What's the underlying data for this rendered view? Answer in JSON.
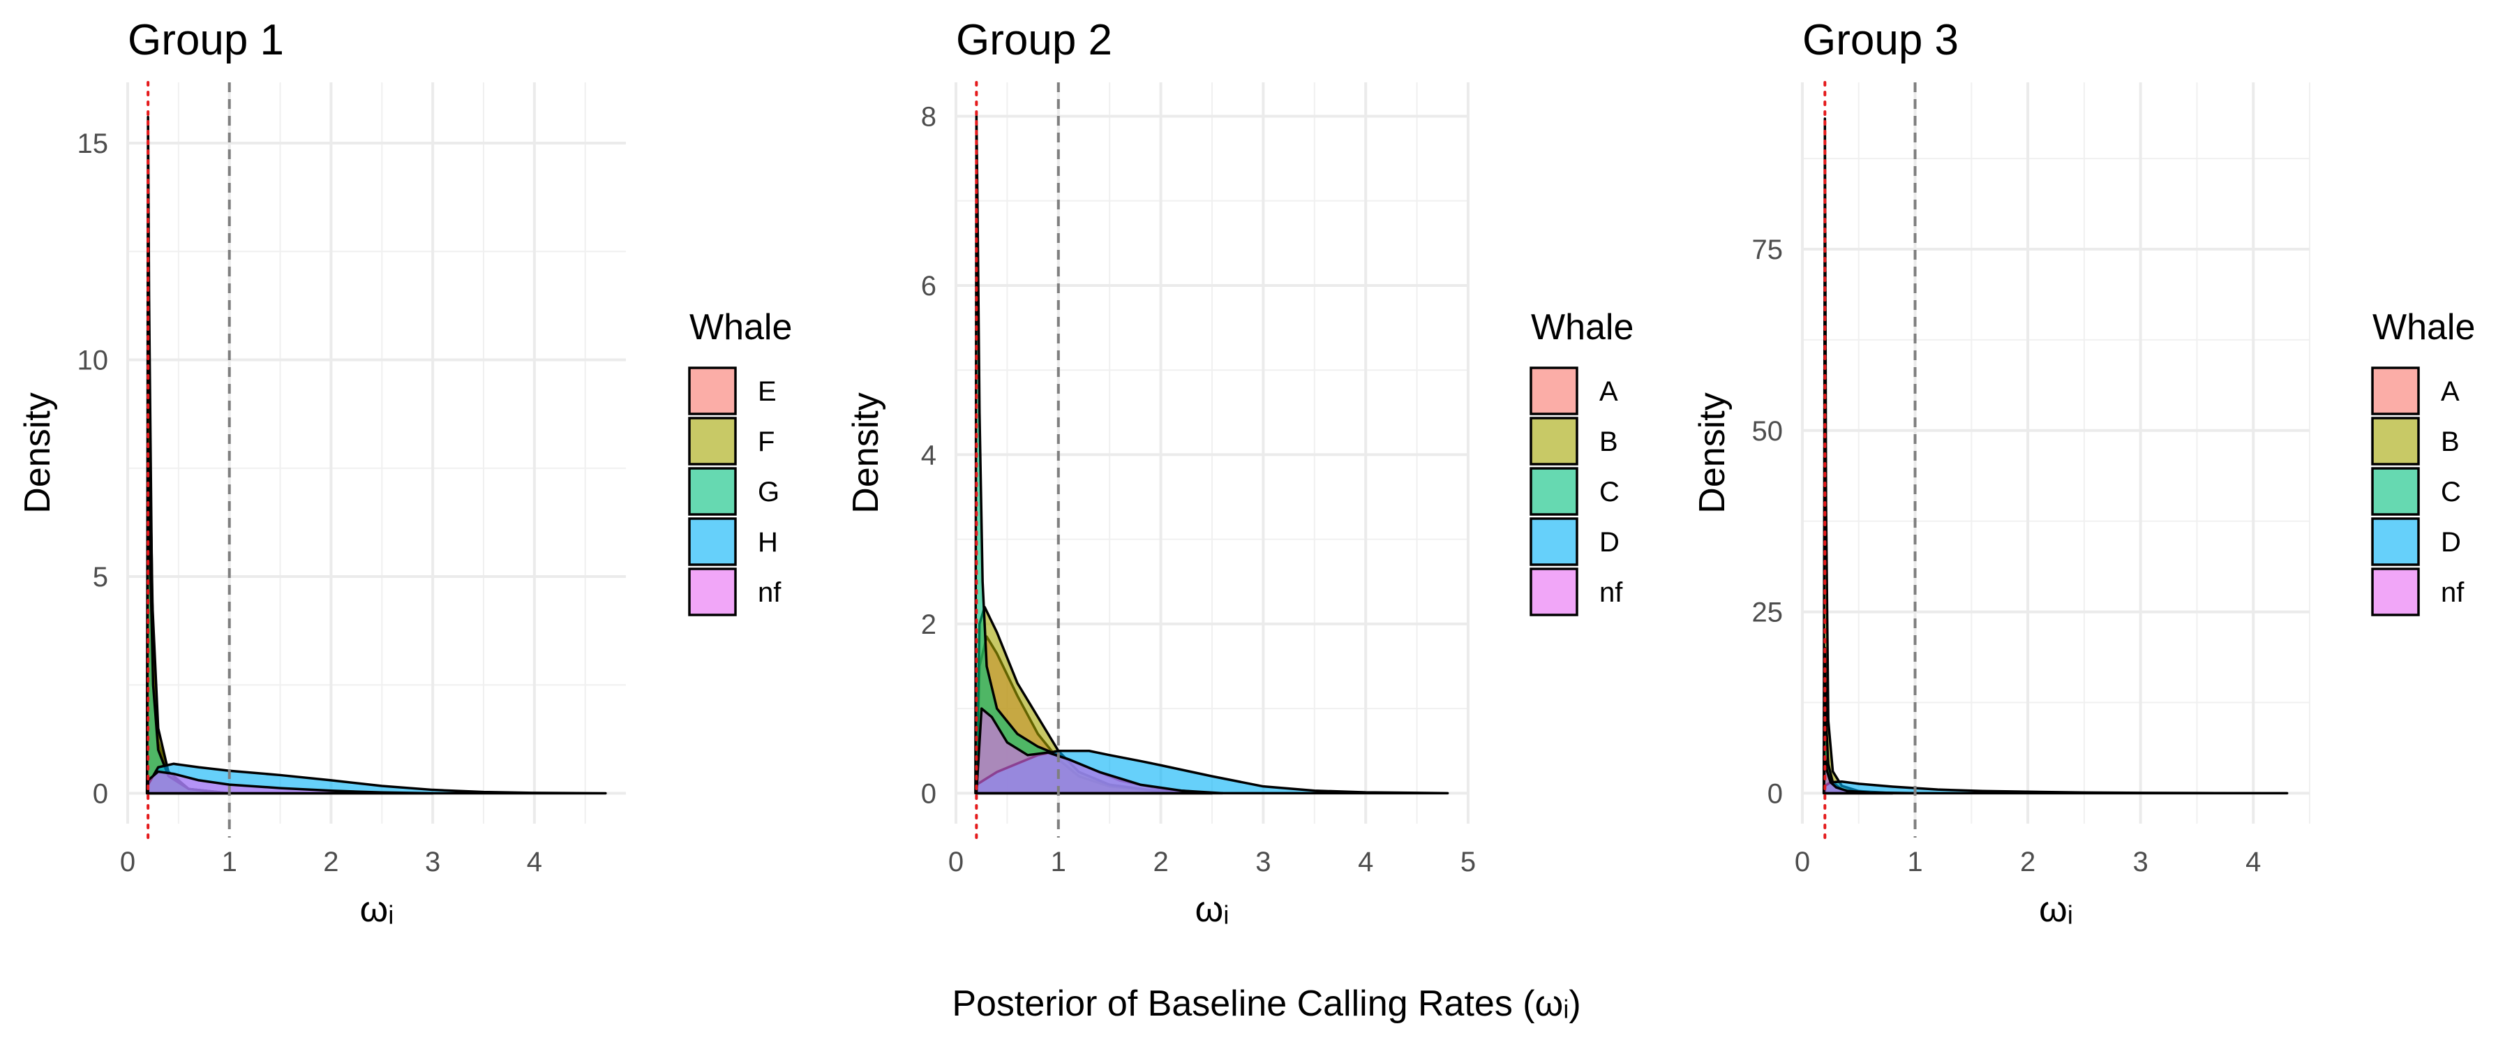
{
  "caption": "Posterior of Baseline Calling Rates (ωᵢ)",
  "chart_data": [
    {
      "type": "area",
      "title": "Group 1",
      "xlabel": "ωᵢ",
      "ylabel": "Density",
      "xlim": [
        0,
        4.9
      ],
      "ylim": [
        -0.7,
        16.4
      ],
      "x_ticks": [
        0,
        1,
        2,
        3,
        4
      ],
      "y_ticks": [
        0,
        5,
        10,
        15
      ],
      "reference_lines": [
        {
          "x": 0.2,
          "style": "dotted",
          "color": "#e41a1c"
        },
        {
          "x": 1.0,
          "style": "dashed",
          "color": "#7f7f7f"
        }
      ],
      "legend_title": "Whale",
      "legend_position": "right",
      "series": [
        {
          "name": "E",
          "color": "#F8766D",
          "x": [
            0.19,
            0.2,
            0.21,
            0.25,
            0.3,
            0.4,
            0.6,
            1.0
          ],
          "y": [
            0,
            11.2,
            9.0,
            3.5,
            1.2,
            0.4,
            0.1,
            0
          ]
        },
        {
          "name": "F",
          "color": "#A3A500",
          "x": [
            0.19,
            0.2,
            0.21,
            0.24,
            0.3,
            0.4,
            0.6,
            1.0
          ],
          "y": [
            0,
            15.6,
            11.5,
            4.5,
            1.5,
            0.5,
            0.1,
            0
          ]
        },
        {
          "name": "G",
          "color": "#00BF7D",
          "x": [
            0.19,
            0.2,
            0.21,
            0.25,
            0.3,
            0.4,
            0.6,
            1.0
          ],
          "y": [
            0,
            8.0,
            6.5,
            2.5,
            1.0,
            0.4,
            0.1,
            0
          ]
        },
        {
          "name": "H",
          "color": "#00B0F6",
          "x": [
            0.2,
            0.3,
            0.45,
            0.7,
            1.0,
            1.5,
            2.0,
            2.5,
            3.0,
            3.5,
            4.0,
            4.7
          ],
          "y": [
            0.2,
            0.6,
            0.68,
            0.6,
            0.52,
            0.42,
            0.3,
            0.17,
            0.08,
            0.03,
            0.01,
            0
          ]
        },
        {
          "name": "nf",
          "color": "#E76BF3",
          "x": [
            0.2,
            0.3,
            0.45,
            0.7,
            1.0,
            1.5,
            2.0,
            2.5,
            3.0
          ],
          "y": [
            0.3,
            0.5,
            0.45,
            0.3,
            0.2,
            0.12,
            0.06,
            0.02,
            0
          ]
        }
      ]
    },
    {
      "type": "area",
      "title": "Group 2",
      "xlabel": "ωᵢ",
      "ylabel": "Density",
      "xlim": [
        0,
        5.0
      ],
      "ylim": [
        -0.36,
        8.4
      ],
      "x_ticks": [
        0,
        1,
        2,
        3,
        4,
        5
      ],
      "y_ticks": [
        0,
        2,
        4,
        6,
        8
      ],
      "reference_lines": [
        {
          "x": 0.2,
          "style": "dotted",
          "color": "#e41a1c"
        },
        {
          "x": 1.0,
          "style": "dashed",
          "color": "#7f7f7f"
        }
      ],
      "legend_title": "Whale",
      "legend_position": "right",
      "series": [
        {
          "name": "A",
          "color": "#F8766D",
          "x": [
            0.2,
            0.23,
            0.3,
            0.4,
            0.6,
            0.8,
            1.0,
            1.2,
            1.5,
            2.0,
            2.5
          ],
          "y": [
            0,
            1.5,
            1.85,
            1.65,
            1.15,
            0.7,
            0.4,
            0.2,
            0.08,
            0.02,
            0
          ]
        },
        {
          "name": "B",
          "color": "#A3A500",
          "x": [
            0.2,
            0.23,
            0.28,
            0.4,
            0.6,
            0.8,
            1.0,
            1.2,
            1.5,
            2.0,
            2.5
          ],
          "y": [
            0,
            2.0,
            2.2,
            1.9,
            1.3,
            0.9,
            0.5,
            0.25,
            0.1,
            0.02,
            0
          ]
        },
        {
          "name": "C",
          "color": "#00BF7D",
          "x": [
            0.19,
            0.2,
            0.21,
            0.23,
            0.26,
            0.3,
            0.4,
            0.6,
            0.8,
            1.0,
            1.3,
            1.6,
            2.0,
            2.5
          ],
          "y": [
            0,
            8.0,
            7.0,
            4.5,
            2.5,
            1.5,
            1.0,
            0.7,
            0.55,
            0.45,
            0.3,
            0.15,
            0.05,
            0
          ]
        },
        {
          "name": "D",
          "color": "#00B0F6",
          "x": [
            0.2,
            0.4,
            0.6,
            0.8,
            1.0,
            1.3,
            1.5,
            1.8,
            2.0,
            2.5,
            3.0,
            3.5,
            4.0,
            4.8
          ],
          "y": [
            0.1,
            0.25,
            0.35,
            0.45,
            0.5,
            0.5,
            0.45,
            0.38,
            0.33,
            0.2,
            0.08,
            0.03,
            0.01,
            0
          ]
        },
        {
          "name": "nf",
          "color": "#E76BF3",
          "x": [
            0.2,
            0.25,
            0.35,
            0.5,
            0.7,
            0.9,
            1.1,
            1.4,
            1.8,
            2.2,
            2.6
          ],
          "y": [
            0,
            1.0,
            0.9,
            0.6,
            0.45,
            0.48,
            0.4,
            0.25,
            0.1,
            0.03,
            0
          ]
        }
      ]
    },
    {
      "type": "area",
      "title": "Group 3",
      "xlabel": "ωᵢ",
      "ylabel": "Density",
      "xlim": [
        0,
        4.5
      ],
      "ylim": [
        -4.2,
        98.0
      ],
      "x_ticks": [
        0,
        1,
        2,
        3,
        4
      ],
      "y_ticks": [
        0,
        25,
        50,
        75
      ],
      "reference_lines": [
        {
          "x": 0.2,
          "style": "dotted",
          "color": "#e41a1c"
        },
        {
          "x": 1.0,
          "style": "dashed",
          "color": "#7f7f7f"
        }
      ],
      "legend_title": "Whale",
      "legend_position": "right",
      "series": [
        {
          "name": "A",
          "color": "#F8766D",
          "x": [
            0.19,
            0.2,
            0.21,
            0.23,
            0.27,
            0.35,
            0.5,
            0.8
          ],
          "y": [
            0,
            10.0,
            6.0,
            3.0,
            1.2,
            0.4,
            0.1,
            0
          ]
        },
        {
          "name": "B",
          "color": "#A3A500",
          "x": [
            0.19,
            0.2,
            0.21,
            0.23,
            0.27,
            0.35,
            0.5,
            0.8
          ],
          "y": [
            0,
            93.0,
            40.0,
            10.0,
            3.0,
            1.0,
            0.3,
            0
          ]
        },
        {
          "name": "C",
          "color": "#00BF7D",
          "x": [
            0.19,
            0.2,
            0.21,
            0.23,
            0.27,
            0.35,
            0.5,
            0.8
          ],
          "y": [
            0,
            20.0,
            10.0,
            4.0,
            1.5,
            0.5,
            0.1,
            0
          ]
        },
        {
          "name": "D",
          "color": "#00B0F6",
          "x": [
            0.2,
            0.25,
            0.35,
            0.5,
            0.8,
            1.2,
            1.6,
            2.0,
            2.5,
            3.0,
            3.5,
            4.3
          ],
          "y": [
            1.0,
            1.5,
            1.6,
            1.3,
            0.9,
            0.5,
            0.3,
            0.2,
            0.1,
            0.05,
            0.02,
            0
          ]
        },
        {
          "name": "nf",
          "color": "#E76BF3",
          "x": [
            0.19,
            0.2,
            0.22,
            0.25,
            0.3,
            0.4,
            0.6,
            1.0
          ],
          "y": [
            0,
            5.0,
            3.0,
            1.5,
            0.8,
            0.3,
            0.1,
            0
          ]
        }
      ]
    }
  ]
}
